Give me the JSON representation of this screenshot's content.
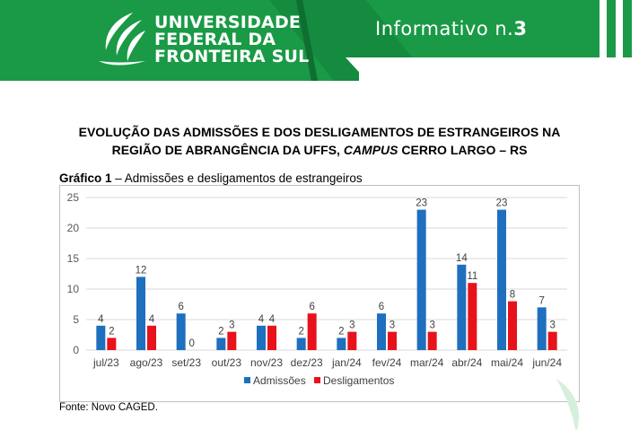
{
  "header": {
    "university_line1": "UNIVERSIDADE",
    "university_line2": "FEDERAL DA",
    "university_line3": "FRONTEIRA SUL",
    "informativo_label": "Informativo n.",
    "informativo_number": "3",
    "logo_icon": "uffs-leaf-logo-icon",
    "brand_color": "#1a9a46"
  },
  "document": {
    "title_part1": "EVOLUÇÃO DAS ADMISSÕES E DOS DESLIGAMENTOS DE ESTRANGEIROS NA",
    "title_part2": "REGIÃO DE ABRANGÊNCIA DA UFFS, ",
    "title_italic": "CAMPUS",
    "title_part3": " CERRO LARGO – RS",
    "caption_bold": "Gráfico 1",
    "caption_text": " – Admissões e desligamentos de estrangeiros",
    "source": "Fonte: Novo CAGED."
  },
  "chart_data": {
    "type": "bar",
    "categories": [
      "jul/23",
      "ago/23",
      "set/23",
      "out/23",
      "nov/23",
      "dez/23",
      "jan/24",
      "fev/24",
      "mar/24",
      "abr/24",
      "mai/24",
      "jun/24"
    ],
    "series": [
      {
        "name": "Admissões",
        "color": "#1f6fbf",
        "values": [
          4,
          12,
          6,
          2,
          4,
          2,
          2,
          6,
          23,
          14,
          23,
          7
        ]
      },
      {
        "name": "Desligamentos",
        "color": "#e8121b",
        "values": [
          2,
          4,
          0,
          3,
          4,
          6,
          3,
          3,
          3,
          11,
          8,
          3
        ]
      }
    ],
    "ylim": [
      0,
      25
    ],
    "yticks": [
      0,
      5,
      10,
      15,
      20,
      25
    ],
    "grid": true,
    "legend_position": "bottom",
    "data_labels": true
  }
}
